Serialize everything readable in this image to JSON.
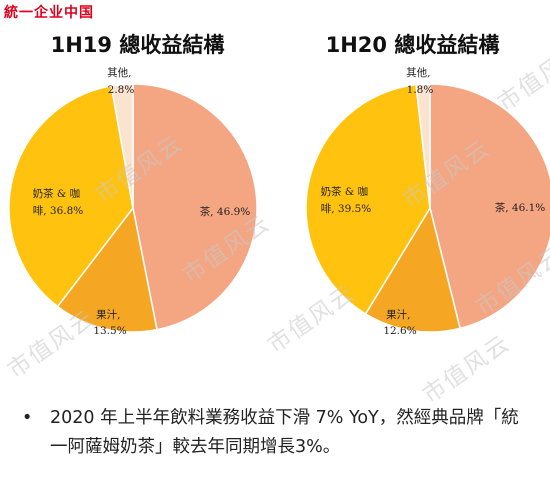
{
  "brand": "統一企业中国",
  "chart_data": [
    {
      "type": "pie",
      "title": "1H19 總收益結構",
      "slices": [
        {
          "name": "茶",
          "value": 46.9,
          "label": "茶, 46.9%",
          "color": "#f4a582"
        },
        {
          "name": "果汁",
          "value": 13.5,
          "label": "果汁, 13.5%",
          "color": "#f5a623"
        },
        {
          "name": "奶茶 & 咖啡",
          "value": 36.8,
          "label": "奶茶 & 咖啡, 36.8%",
          "color": "#ffc20e"
        },
        {
          "name": "其他",
          "value": 2.8,
          "label": "其他, 2.8%",
          "color": "#fbe4cf"
        }
      ]
    },
    {
      "type": "pie",
      "title": "1H20 總收益結構",
      "slices": [
        {
          "name": "茶",
          "value": 46.1,
          "label": "茶, 46.1%",
          "color": "#f4a582"
        },
        {
          "name": "果汁",
          "value": 12.6,
          "label": "果汁, 12.6%",
          "color": "#f5a623"
        },
        {
          "name": "奶茶 & 咖啡",
          "value": 39.5,
          "label": "奶茶 & 咖啡, 39.5%",
          "color": "#ffc20e"
        },
        {
          "name": "其他",
          "value": 1.8,
          "label": "其他, 1.8%",
          "color": "#fbe4cf"
        }
      ]
    }
  ],
  "labels": {
    "c0": {
      "tea": [
        "茶, 46.9%"
      ],
      "juice": [
        "果汁,",
        "13.5%"
      ],
      "milk": [
        "奶茶 & 咖",
        "啡, 36.8%"
      ],
      "other": [
        "其他,",
        "2.8%"
      ]
    },
    "c1": {
      "tea": [
        "茶, 46.1%"
      ],
      "juice": [
        "果汁,",
        "12.6%"
      ],
      "milk": [
        "奶茶 & 咖",
        "啡, 39.5%"
      ],
      "other": [
        "其他,",
        "1.8%"
      ]
    }
  },
  "note": {
    "bullet": "•",
    "text": "2020 年上半年飲料業務收益下滑 7% YoY，然經典品牌「統一阿薩姆奶茶」較去年同期增長3%。"
  },
  "watermark": "市值风云"
}
